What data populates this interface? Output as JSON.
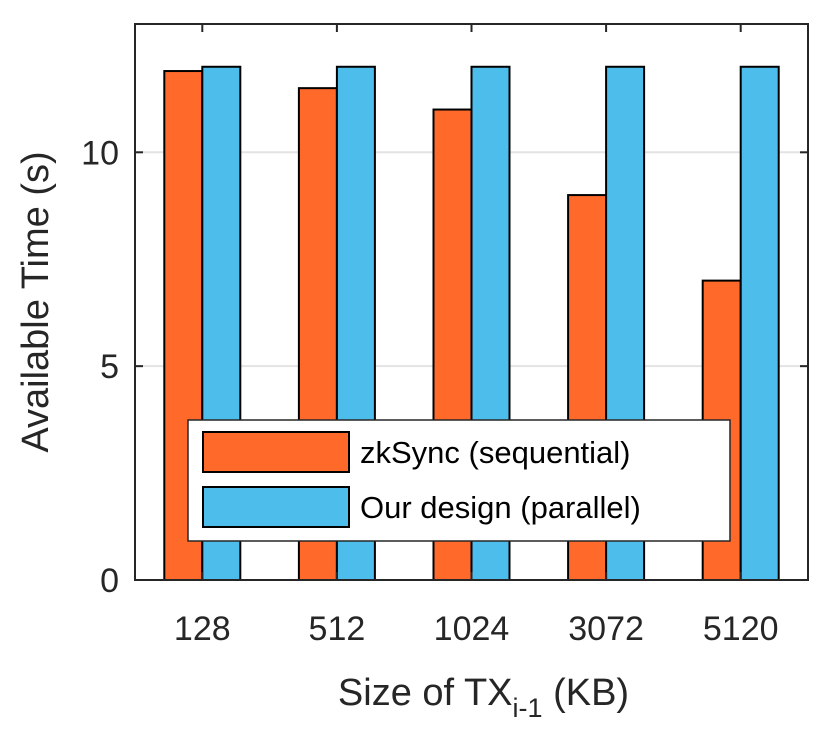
{
  "chart_data": {
    "type": "bar",
    "categories": [
      "128",
      "512",
      "1024",
      "3072",
      "5120"
    ],
    "series": [
      {
        "name": "zkSync (sequential)",
        "color": "#ff6a2b",
        "values": [
          11.9,
          11.5,
          11.0,
          9.0,
          7.0
        ]
      },
      {
        "name": "Our design (parallel)",
        "color": "#4dbeeb",
        "values": [
          12.0,
          12.0,
          12.0,
          12.0,
          12.0
        ]
      }
    ],
    "ylim": [
      0,
      13
    ],
    "yticks": [
      0,
      5,
      10
    ],
    "grid": "horizontal",
    "legend_position": "lower-center",
    "xlabel": {
      "main": "Size of TX",
      "subscript": "i-1",
      "suffix": " (KB)"
    },
    "ylabel": "Available Time (s)"
  }
}
